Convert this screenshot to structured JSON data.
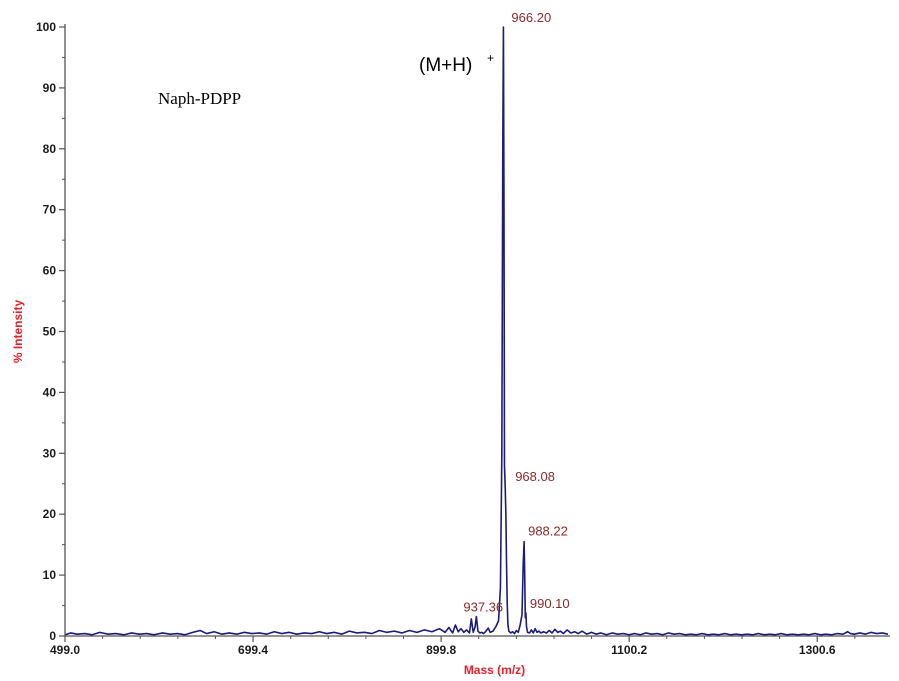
{
  "chart_data": {
    "type": "line",
    "title": "",
    "xlabel": "Mass (m/z)",
    "ylabel": "% Intensity",
    "xlim": [
      499.0,
      1376.0
    ],
    "ylim": [
      0,
      100
    ],
    "x_ticks": [
      "499.0",
      "699.4",
      "899.8",
      "1100.2",
      "1300.6"
    ],
    "y_ticks": [
      "0",
      "10",
      "20",
      "30",
      "40",
      "50",
      "60",
      "70",
      "80",
      "90",
      "100"
    ],
    "grid": false,
    "line_color": "#1c1c7a",
    "axis_title_color": "#e8202a",
    "peak_label_color": "#8b2a2a",
    "annotations": {
      "sample": "Naph-PDPP",
      "ion": "(M+H)",
      "ion_charge": "+"
    },
    "peak_labels": [
      {
        "text": "966.20",
        "x": 966.2,
        "y": 100
      },
      {
        "text": "968.08",
        "x": 968.08,
        "y": 24.5
      },
      {
        "text": "988.22",
        "x": 988.22,
        "y": 15.5
      },
      {
        "text": "990.10",
        "x": 990.1,
        "y": 3.8
      },
      {
        "text": "937.36",
        "x": 937.36,
        "y": 3.0
      }
    ],
    "series": [
      {
        "points": [
          [
            499.0,
            0.2
          ],
          [
            505,
            0.5
          ],
          [
            512,
            0.3
          ],
          [
            520,
            0.4
          ],
          [
            528,
            0.2
          ],
          [
            536,
            0.6
          ],
          [
            545,
            0.3
          ],
          [
            553,
            0.4
          ],
          [
            562,
            0.2
          ],
          [
            570,
            0.5
          ],
          [
            578,
            0.3
          ],
          [
            586,
            0.4
          ],
          [
            594,
            0.2
          ],
          [
            603,
            0.5
          ],
          [
            611,
            0.3
          ],
          [
            619,
            0.4
          ],
          [
            627,
            0.2
          ],
          [
            635,
            0.6
          ],
          [
            643,
            0.9
          ],
          [
            650,
            0.4
          ],
          [
            658,
            0.7
          ],
          [
            666,
            0.3
          ],
          [
            674,
            0.5
          ],
          [
            682,
            0.3
          ],
          [
            690,
            0.6
          ],
          [
            698,
            0.4
          ],
          [
            706,
            0.5
          ],
          [
            714,
            0.3
          ],
          [
            722,
            0.7
          ],
          [
            730,
            0.4
          ],
          [
            738,
            0.6
          ],
          [
            746,
            0.3
          ],
          [
            754,
            0.5
          ],
          [
            762,
            0.4
          ],
          [
            770,
            0.7
          ],
          [
            778,
            0.4
          ],
          [
            786,
            0.6
          ],
          [
            794,
            0.3
          ],
          [
            802,
            0.8
          ],
          [
            810,
            0.5
          ],
          [
            818,
            0.6
          ],
          [
            826,
            0.4
          ],
          [
            834,
            0.9
          ],
          [
            842,
            0.6
          ],
          [
            850,
            0.8
          ],
          [
            858,
            0.5
          ],
          [
            866,
            0.9
          ],
          [
            874,
            0.6
          ],
          [
            882,
            1.0
          ],
          [
            890,
            0.7
          ],
          [
            898,
            1.2
          ],
          [
            904,
            0.6
          ],
          [
            908,
            1.4
          ],
          [
            912,
            0.5
          ],
          [
            915,
            1.8
          ],
          [
            918,
            0.7
          ],
          [
            921,
            1.2
          ],
          [
            924,
            0.6
          ],
          [
            927,
            1.0
          ],
          [
            930,
            0.5
          ],
          [
            932,
            2.8
          ],
          [
            934,
            0.6
          ],
          [
            936,
            1.5
          ],
          [
            937.36,
            3.2
          ],
          [
            939,
            0.8
          ],
          [
            941,
            0.5
          ],
          [
            943,
            0.6
          ],
          [
            945,
            0.4
          ],
          [
            947,
            0.7
          ],
          [
            950,
            1.3
          ],
          [
            952,
            0.6
          ],
          [
            955,
            0.8
          ],
          [
            958,
            1.5
          ],
          [
            961,
            2.5
          ],
          [
            963,
            8.0
          ],
          [
            964.5,
            30.0
          ],
          [
            965.5,
            80.0
          ],
          [
            966.2,
            100.0
          ],
          [
            966.8,
            70.0
          ],
          [
            967.3,
            28.0
          ],
          [
            968.08,
            24.5
          ],
          [
            968.8,
            20.0
          ],
          [
            969.5,
            12.0
          ],
          [
            970.2,
            5.5
          ],
          [
            971,
            1.8
          ],
          [
            972,
            0.8
          ],
          [
            974,
            0.5
          ],
          [
            976,
            0.7
          ],
          [
            978,
            0.4
          ],
          [
            980,
            0.9
          ],
          [
            982,
            0.6
          ],
          [
            984,
            1.8
          ],
          [
            986,
            3.5
          ],
          [
            987.3,
            12.0
          ],
          [
            988.22,
            15.5
          ],
          [
            988.9,
            10.0
          ],
          [
            989.5,
            3.0
          ],
          [
            990.1,
            3.8
          ],
          [
            990.8,
            1.5
          ],
          [
            992,
            0.6
          ],
          [
            994,
            0.5
          ],
          [
            996,
            1.0
          ],
          [
            998,
            0.5
          ],
          [
            1000,
            1.2
          ],
          [
            1002,
            0.6
          ],
          [
            1004,
            0.8
          ],
          [
            1006,
            0.5
          ],
          [
            1009,
            0.7
          ],
          [
            1012,
            0.5
          ],
          [
            1015,
            0.9
          ],
          [
            1018,
            0.5
          ],
          [
            1021,
            1.1
          ],
          [
            1024,
            0.6
          ],
          [
            1027,
            0.8
          ],
          [
            1030,
            0.4
          ],
          [
            1034,
            1.0
          ],
          [
            1038,
            0.5
          ],
          [
            1042,
            0.7
          ],
          [
            1046,
            0.4
          ],
          [
            1050,
            0.8
          ],
          [
            1055,
            0.3
          ],
          [
            1060,
            0.6
          ],
          [
            1065,
            0.3
          ],
          [
            1070,
            0.5
          ],
          [
            1076,
            0.2
          ],
          [
            1082,
            0.5
          ],
          [
            1088,
            0.3
          ],
          [
            1094,
            0.4
          ],
          [
            1100,
            0.2
          ],
          [
            1106,
            0.4
          ],
          [
            1112,
            0.2
          ],
          [
            1118,
            0.5
          ],
          [
            1124,
            0.3
          ],
          [
            1130,
            0.4
          ],
          [
            1136,
            0.2
          ],
          [
            1142,
            0.5
          ],
          [
            1148,
            0.3
          ],
          [
            1154,
            0.4
          ],
          [
            1160,
            0.2
          ],
          [
            1166,
            0.3
          ],
          [
            1172,
            0.2
          ],
          [
            1178,
            0.4
          ],
          [
            1184,
            0.2
          ],
          [
            1190,
            0.3
          ],
          [
            1196,
            0.2
          ],
          [
            1202,
            0.4
          ],
          [
            1208,
            0.2
          ],
          [
            1214,
            0.3
          ],
          [
            1220,
            0.2
          ],
          [
            1226,
            0.3
          ],
          [
            1232,
            0.2
          ],
          [
            1238,
            0.4
          ],
          [
            1244,
            0.2
          ],
          [
            1250,
            0.3
          ],
          [
            1256,
            0.2
          ],
          [
            1262,
            0.4
          ],
          [
            1268,
            0.2
          ],
          [
            1274,
            0.3
          ],
          [
            1280,
            0.2
          ],
          [
            1286,
            0.3
          ],
          [
            1292,
            0.2
          ],
          [
            1298,
            0.4
          ],
          [
            1304,
            0.2
          ],
          [
            1310,
            0.3
          ],
          [
            1316,
            0.2
          ],
          [
            1322,
            0.4
          ],
          [
            1328,
            0.3
          ],
          [
            1333,
            0.7
          ],
          [
            1336,
            0.4
          ],
          [
            1340,
            0.3
          ],
          [
            1346,
            0.5
          ],
          [
            1352,
            0.3
          ],
          [
            1358,
            0.6
          ],
          [
            1364,
            0.4
          ],
          [
            1370,
            0.5
          ],
          [
            1376,
            0.3
          ]
        ]
      }
    ]
  }
}
